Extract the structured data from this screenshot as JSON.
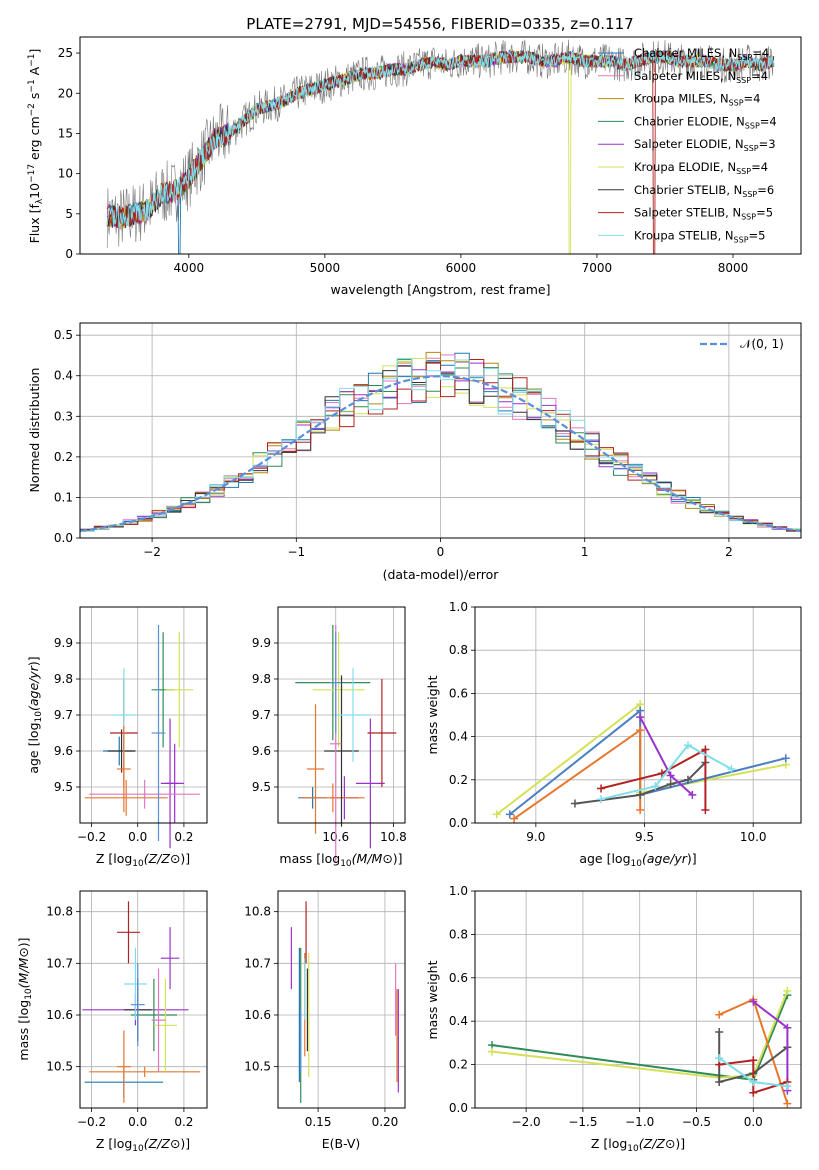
{
  "title": "PLATE=2791, MJD=54556, FIBERID=0335, z=0.117",
  "models": [
    {
      "label": "Chabrier MILES, N",
      "n": "4",
      "color": "#1f77b4"
    },
    {
      "label": "Salpeter MILES, N",
      "n": "4",
      "color": "#e377c2"
    },
    {
      "label": "Kroupa MILES, N",
      "n": "4",
      "color": "#b8860b"
    },
    {
      "label": "Chabrier ELODIE, N",
      "n": "4",
      "color": "#2e8b57"
    },
    {
      "label": "Salpeter ELODIE, N",
      "n": "3",
      "color": "#9932cc"
    },
    {
      "label": "Kroupa ELODIE, N",
      "n": "4",
      "color": "#d4e157"
    },
    {
      "label": "Chabrier STELIB, N",
      "n": "6",
      "color": "#333333"
    },
    {
      "label": "Salpeter STELIB, N",
      "n": "5",
      "color": "#b22222"
    },
    {
      "label": "Kroupa STELIB, N",
      "n": "5",
      "color": "#80deea"
    }
  ],
  "ssp_sub": "SSP",
  "chart_data": [
    {
      "type": "line",
      "id": "spectrum",
      "xlabel": "wavelength [Angstrom, rest frame]",
      "ylabel": "Flux [f",
      "ylabel_parts": [
        "Flux [f",
        "λ",
        "10",
        "−17",
        " erg cm",
        "−2",
        " s",
        "−1",
        " A",
        "−1",
        "]"
      ],
      "xlim": [
        3200,
        8500
      ],
      "ylim": [
        0,
        27
      ],
      "xticks": [
        4000,
        5000,
        6000,
        7000,
        8000
      ],
      "yticks": [
        0,
        5,
        10,
        15,
        20,
        25
      ],
      "x": [
        3400,
        3500,
        3600,
        3700,
        3800,
        3900,
        4000,
        4100,
        4200,
        4300,
        4400,
        4500,
        4600,
        4700,
        4800,
        4900,
        5000,
        5100,
        5200,
        5300,
        5400,
        5500,
        5600,
        5700,
        5800,
        5900,
        6000,
        6100,
        6200,
        6300,
        6400,
        6500,
        6600,
        6700,
        6800,
        6900,
        7000,
        7100,
        7200,
        7300,
        7400,
        7500,
        7600,
        7700,
        7800,
        7900,
        8000,
        8100,
        8200,
        8300
      ],
      "y": [
        4.8,
        4.5,
        5.0,
        5.5,
        7.5,
        7.8,
        9.5,
        12.0,
        14.5,
        15.0,
        16.5,
        18.0,
        18.5,
        19.0,
        20.0,
        20.5,
        21.0,
        21.5,
        22.0,
        22.5,
        22.5,
        23.0,
        23.0,
        23.5,
        24.0,
        23.5,
        24.0,
        24.0,
        24.0,
        24.5,
        24.5,
        24.5,
        24.0,
        24.0,
        24.5,
        24.0,
        24.0,
        24.0,
        23.5,
        24.0,
        24.5,
        24.5,
        24.0,
        24.0,
        24.0,
        23.5,
        23.5,
        24.0,
        23.5,
        24.0
      ]
    },
    {
      "type": "histogram",
      "id": "residuals",
      "xlabel": "(data-model)/error",
      "ylabel": "Normed distribution",
      "xlim": [
        -2.5,
        2.5
      ],
      "ylim": [
        0,
        0.53
      ],
      "xticks": [
        -2,
        -1,
        0,
        1,
        2
      ],
      "xtick_labels": [
        "−2",
        "−1",
        "0",
        "1",
        "2"
      ],
      "yticks": [
        0.0,
        0.1,
        0.2,
        0.3,
        0.4,
        0.5
      ],
      "legend": "𝒩(0, 1)",
      "bin_width": 0.1,
      "bins_left": [
        -2.5,
        -2.4,
        -2.3,
        -2.2,
        -2.1,
        -2.0,
        -1.9,
        -1.8,
        -1.7,
        -1.6,
        -1.5,
        -1.4,
        -1.3,
        -1.2,
        -1.1,
        -1.0,
        -0.9,
        -0.8,
        -0.7,
        -0.6,
        -0.5,
        -0.4,
        -0.3,
        -0.2,
        -0.1,
        0.0,
        0.1,
        0.2,
        0.3,
        0.4,
        0.5,
        0.6,
        0.7,
        0.8,
        0.9,
        1.0,
        1.1,
        1.2,
        1.3,
        1.4,
        1.5,
        1.6,
        1.7,
        1.8,
        1.9,
        2.0,
        2.1,
        2.2,
        2.3,
        2.4
      ]
    },
    {
      "type": "scatter",
      "id": "z_age",
      "xlabel": "Z [log10(Z/Z⊙)]",
      "ylabel": "age [log10(age/yr)]",
      "xlim": [
        -0.25,
        0.3
      ],
      "ylim": [
        9.4,
        10.0
      ],
      "xticks": [
        -0.2,
        0.0,
        0.2
      ],
      "xtick_labels": [
        "−0.2",
        "0.0",
        "0.2"
      ],
      "yticks": [
        9.5,
        9.6,
        9.7,
        9.8,
        9.9
      ]
    },
    {
      "type": "scatter",
      "id": "mass_age",
      "xlabel": "mass [log10(M/M⊙)]",
      "ylabel": "",
      "xlim": [
        10.4,
        10.84
      ],
      "ylim": [
        9.4,
        10.0
      ],
      "xticks": [
        10.6,
        10.8
      ],
      "xtick_labels": [
        "10.6",
        "10.8"
      ],
      "yticks": [
        9.5,
        9.6,
        9.7,
        9.8,
        9.9
      ]
    },
    {
      "type": "line",
      "id": "age_weight",
      "xlabel": "age [log10(age/yr)]",
      "ylabel": "mass weight",
      "xlim": [
        8.72,
        10.22
      ],
      "ylim": [
        0,
        1
      ],
      "xticks": [
        9.0,
        9.5,
        10.0
      ],
      "xtick_labels": [
        "9.0",
        "9.5",
        "10.0"
      ],
      "yticks": [
        0.0,
        0.2,
        0.4,
        0.6,
        0.8,
        1.0
      ]
    },
    {
      "type": "scatter",
      "id": "z_mass",
      "xlabel": "Z [log10(Z/Z⊙)]",
      "ylabel": "mass [log10(M/M⊙)]",
      "xlim": [
        -0.25,
        0.3
      ],
      "ylim": [
        10.42,
        10.84
      ],
      "xticks": [
        -0.2,
        0.0,
        0.2
      ],
      "xtick_labels": [
        "−0.2",
        "0.0",
        "0.2"
      ],
      "yticks": [
        10.5,
        10.6,
        10.7,
        10.8
      ]
    },
    {
      "type": "scatter",
      "id": "ebv_mass",
      "xlabel": "E(B-V)",
      "ylabel": "",
      "xlim": [
        0.12,
        0.215
      ],
      "ylim": [
        10.42,
        10.84
      ],
      "xticks": [
        0.15,
        0.2
      ],
      "xtick_labels": [
        "0.15",
        "0.20"
      ],
      "yticks": [
        10.5,
        10.6,
        10.7,
        10.8
      ]
    },
    {
      "type": "line",
      "id": "z_weight",
      "xlabel": "Z [log10(Z/Z⊙)]",
      "ylabel": "mass weight",
      "xlim": [
        -2.45,
        0.42
      ],
      "ylim": [
        0,
        1
      ],
      "xticks": [
        -2.0,
        -1.5,
        -1.0,
        -0.5,
        0.0
      ],
      "xtick_labels": [
        "−2.0",
        "−1.5",
        "−1.0",
        "−0.5",
        "0.0"
      ],
      "yticks": [
        0.0,
        0.2,
        0.4,
        0.6,
        0.8,
        1.0
      ]
    }
  ]
}
